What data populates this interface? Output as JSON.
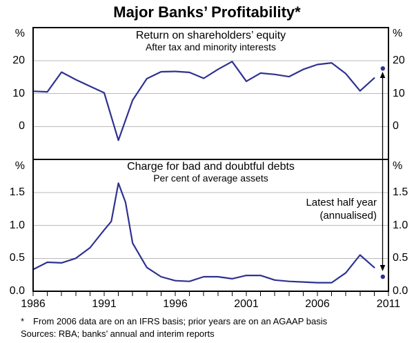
{
  "title": "Major Banks’ Profitability*",
  "top_panel": {
    "heading": "Return on shareholders’ equity",
    "subheading": "After tax and minority interests",
    "unit_left": "%",
    "unit_right": "%",
    "yticks": [
      "20",
      "10",
      "0"
    ]
  },
  "bottom_panel": {
    "heading": "Charge for bad and doubtful debts",
    "subheading": "Per cent of average assets",
    "unit_left": "%",
    "unit_right": "%",
    "yticks": [
      "1.5",
      "1.0",
      "0.5",
      "0.0"
    ],
    "annotation_line1": "Latest half year",
    "annotation_line2": "(annualised)"
  },
  "x_axis": {
    "labels": [
      "1986",
      "1991",
      "1996",
      "2001",
      "2006",
      "2011"
    ]
  },
  "footnote": {
    "marker": "*",
    "line1": "From 2006 data are on an IFRS basis; prior years are on an AGAAP basis",
    "line2": "Sources: RBA; banks’ annual and interim reports"
  },
  "colors": {
    "line": "#2d3190",
    "grid": "#b9b9b9",
    "frame": "#000000",
    "arrow": "#000000"
  },
  "chart_data": [
    {
      "type": "line",
      "panel": "top",
      "title": "Return on shareholders’ equity",
      "subtitle": "After tax and minority interests",
      "ylabel": "%",
      "x_range": [
        1986,
        2011
      ],
      "ylim": [
        -10,
        30
      ],
      "gridlines": [
        0,
        10,
        20
      ],
      "grid": "on",
      "points": [
        [
          1986,
          10.7
        ],
        [
          1987,
          10.5
        ],
        [
          1988,
          16.5
        ],
        [
          1989,
          14.2
        ],
        [
          1990,
          12.2
        ],
        [
          1991,
          10.2
        ],
        [
          1992,
          -4.2
        ],
        [
          1993,
          8.0
        ],
        [
          1994,
          14.5
        ],
        [
          1995,
          16.6
        ],
        [
          1996,
          16.7
        ],
        [
          1997,
          16.4
        ],
        [
          1998,
          14.6
        ],
        [
          1999,
          17.3
        ],
        [
          2000,
          19.7
        ],
        [
          2001,
          13.7
        ],
        [
          2002,
          16.2
        ],
        [
          2003,
          15.8
        ],
        [
          2004,
          15.1
        ],
        [
          2005,
          17.3
        ],
        [
          2006,
          18.8
        ],
        [
          2007,
          19.3
        ],
        [
          2008,
          16.0
        ],
        [
          2009,
          10.8
        ],
        [
          2010,
          14.7
        ]
      ],
      "latest_half_year": {
        "x": 2010.6,
        "value": 17.6,
        "label": "Latest half year (annualised)"
      }
    },
    {
      "type": "line",
      "panel": "bottom",
      "title": "Charge for bad and doubtful debts",
      "subtitle": "Per cent of average assets",
      "ylabel": "%",
      "x_range": [
        1986,
        2011
      ],
      "ylim": [
        0,
        2
      ],
      "gridlines": [
        0.5,
        1.0,
        1.5
      ],
      "grid": "on",
      "points": [
        [
          1986,
          0.33
        ],
        [
          1987,
          0.44
        ],
        [
          1988,
          0.43
        ],
        [
          1989,
          0.5
        ],
        [
          1990,
          0.66
        ],
        [
          1991,
          0.93
        ],
        [
          1991.5,
          1.06
        ],
        [
          1992,
          1.64
        ],
        [
          1992.5,
          1.35
        ],
        [
          1993,
          0.73
        ],
        [
          1994,
          0.36
        ],
        [
          1995,
          0.22
        ],
        [
          1996,
          0.16
        ],
        [
          1997,
          0.15
        ],
        [
          1998,
          0.22
        ],
        [
          1999,
          0.22
        ],
        [
          2000,
          0.19
        ],
        [
          2001,
          0.24
        ],
        [
          2002,
          0.24
        ],
        [
          2003,
          0.17
        ],
        [
          2004,
          0.15
        ],
        [
          2005,
          0.14
        ],
        [
          2006,
          0.13
        ],
        [
          2007,
          0.13
        ],
        [
          2008,
          0.28
        ],
        [
          2009,
          0.55
        ],
        [
          2010,
          0.36
        ]
      ],
      "latest_half_year": {
        "x": 2010.6,
        "value": 0.22,
        "label": "Latest half year (annualised)"
      }
    }
  ]
}
